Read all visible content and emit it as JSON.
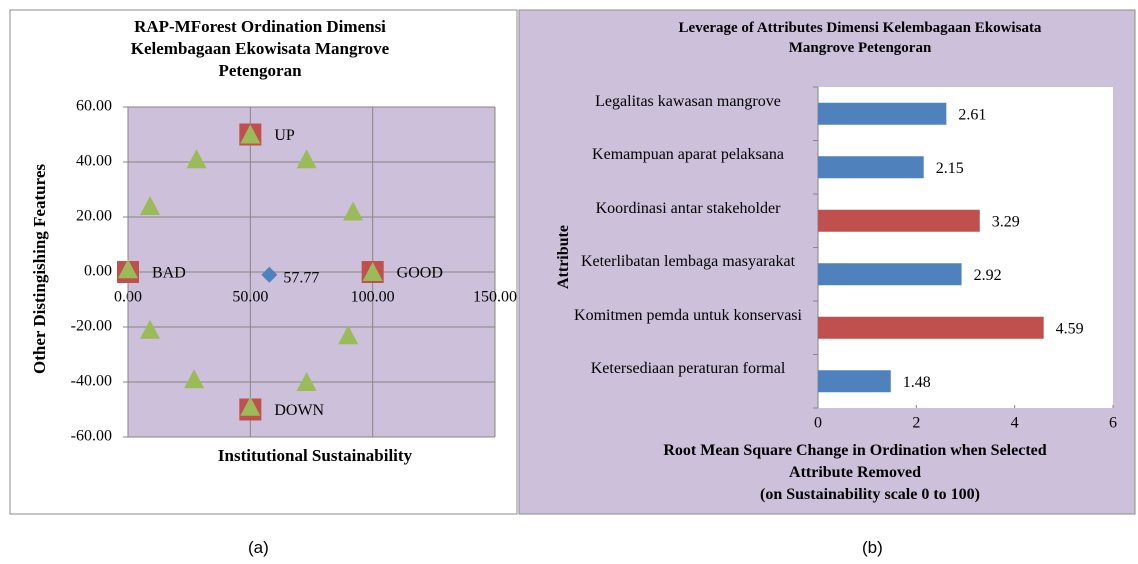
{
  "chart_data": [
    {
      "type": "scatter",
      "title": "RAP-MForest Ordination Dimensi Kelembagaan Ekowisata Mangrove Petengoran",
      "xlabel": "Institutional Sustainability",
      "ylabel": "Other Distingishing Features",
      "xlim": [
        0,
        150
      ],
      "xticks": [
        {
          "value": 0,
          "label": "0.00"
        },
        {
          "value": 50,
          "label": "50.00"
        },
        {
          "value": 100,
          "label": "100.00"
        },
        {
          "value": 150,
          "label": "150.00"
        }
      ],
      "ylim": [
        -60,
        60
      ],
      "yticks": [
        {
          "value": -60,
          "label": "-60.00"
        },
        {
          "value": -40,
          "label": "-40.00"
        },
        {
          "value": -20,
          "label": "-20.00"
        },
        {
          "value": 0,
          "label": "0.00"
        },
        {
          "value": 20,
          "label": "20.00"
        },
        {
          "value": 40,
          "label": "40.00"
        },
        {
          "value": 60,
          "label": "60.00"
        }
      ],
      "grid": true,
      "series": [
        {
          "marker": "square",
          "color": "#c0504d",
          "x": [
            0,
            100,
            50,
            50
          ],
          "values": [
            0,
            0,
            50,
            -50
          ],
          "labels": [
            "BAD",
            "GOOD",
            "UP",
            "DOWN"
          ]
        },
        {
          "marker": "triangle",
          "color": "#9bbb59",
          "x": [
            50,
            73,
            92,
            100,
            90,
            73,
            50,
            27,
            9,
            0,
            9,
            28
          ],
          "values": [
            50,
            41,
            22,
            0,
            -23,
            -40,
            -49,
            -39,
            -21,
            1,
            24,
            41
          ]
        },
        {
          "marker": "diamond",
          "color": "#4f81bd",
          "x": [
            57.77
          ],
          "values": [
            -1
          ]
        }
      ]
    },
    {
      "type": "barh",
      "title": "Leverage of Attributes Dimensi  Kelembagaan Ekowisata Mangrove Petengoran",
      "xlabel": "Root Mean Square Change in Ordination when Selected Attribute Removed",
      "xlabel2": "(on Sustainability scale 0 to 100)",
      "ylabel": "Attribute",
      "categories": [
        "Legalitas kawasan mangrove",
        "Kemampuan aparat pelaksana",
        "Koordinasi antar stakeholder",
        "Keterlibatan lembaga masyarakat",
        "Komitmen pemda untuk konservasi",
        "Ketersediaan peraturan formal"
      ],
      "values": [
        2.61,
        2.15,
        3.29,
        2.92,
        4.59,
        1.48
      ],
      "colors": [
        "#4f81bd",
        "#4f81bd",
        "#c0504d",
        "#4f81bd",
        "#c0504d",
        "#4f81bd"
      ],
      "xlim": [
        0,
        6
      ],
      "xticks": [
        0,
        2,
        4,
        6
      ]
    }
  ],
  "captions": [
    "(a)",
    "(b)"
  ]
}
